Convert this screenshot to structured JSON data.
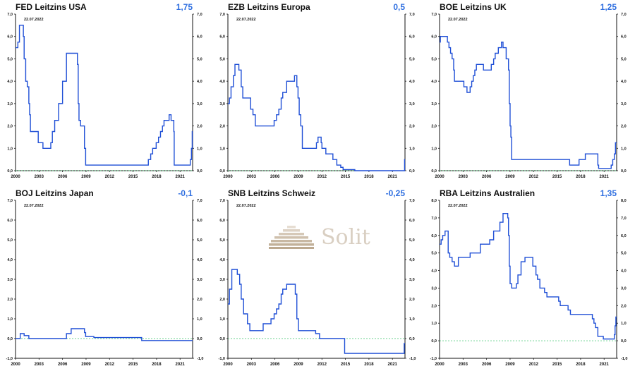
{
  "logo": {
    "text": "Solit"
  },
  "chart_data": [
    {
      "type": "line",
      "title": "FED Leitzins USA",
      "current_value": "1,75",
      "date_label": "22.07.2022",
      "ylim": [
        0,
        7
      ],
      "yticks": [
        "0,0",
        "1,0",
        "2,0",
        "3,0",
        "4,0",
        "5,0",
        "6,0",
        "7,0"
      ],
      "xlim": [
        2000,
        2022.6
      ],
      "xticks": [
        "2000",
        "2003",
        "2006",
        "2009",
        "2012",
        "2015",
        "2018",
        "2021"
      ],
      "zero_line": true,
      "line_color": "#1f4fd6",
      "series": [
        {
          "x": [
            2000,
            2000.3,
            2000.5,
            2000.9,
            2001.0,
            2001.1,
            2001.3,
            2001.5,
            2001.7,
            2001.8,
            2001.9,
            2002.9,
            2003.5,
            2004.5,
            2004.7,
            2005.0,
            2005.5,
            2006.0,
            2006.5,
            2007.7,
            2007.9,
            2008.0,
            2008.1,
            2008.3,
            2008.8,
            2008.95,
            2015.95,
            2016.95,
            2017.25,
            2017.5,
            2017.95,
            2018.25,
            2018.5,
            2018.75,
            2018.95,
            2019.6,
            2019.7,
            2019.85,
            2020.2,
            2020.25,
            2022.2,
            2022.3,
            2022.45,
            2022.55
          ],
          "y": [
            5.5,
            5.75,
            6.5,
            6.5,
            6.0,
            5.0,
            4.0,
            3.75,
            3.0,
            2.5,
            1.75,
            1.25,
            1.0,
            1.25,
            1.75,
            2.25,
            3.0,
            4.0,
            5.25,
            5.25,
            4.75,
            3.0,
            2.25,
            2.0,
            1.0,
            0.25,
            0.25,
            0.5,
            0.75,
            1.0,
            1.25,
            1.5,
            1.75,
            2.0,
            2.25,
            2.5,
            2.5,
            2.25,
            1.75,
            0.25,
            0.25,
            0.5,
            1.0,
            1.75
          ]
        }
      ]
    },
    {
      "type": "line",
      "title": "EZB Leitzins Europa",
      "current_value": "0,5",
      "date_label": "22.07.2022",
      "ylim": [
        0,
        7
      ],
      "yticks": [
        "0,0",
        "1,0",
        "2,0",
        "3,0",
        "4,0",
        "5,0",
        "6,0",
        "7,0"
      ],
      "xlim": [
        2000,
        2022.6
      ],
      "xticks": [
        "2000",
        "2003",
        "2006",
        "2009",
        "2012",
        "2015",
        "2018",
        "2021"
      ],
      "zero_line": true,
      "line_color": "#1f4fd6",
      "series": [
        {
          "x": [
            2000,
            2000.2,
            2000.4,
            2000.7,
            2000.9,
            2001.4,
            2001.7,
            2001.9,
            2002.9,
            2003.2,
            2003.5,
            2005.9,
            2006.2,
            2006.5,
            2006.8,
            2007.0,
            2007.5,
            2008.5,
            2008.8,
            2008.95,
            2009.1,
            2009.3,
            2009.5,
            2011.3,
            2011.5,
            2011.9,
            2012.0,
            2012.5,
            2013.4,
            2013.9,
            2014.4,
            2014.7,
            2016.2,
            2022.5,
            2022.55
          ],
          "y": [
            3.0,
            3.25,
            3.75,
            4.25,
            4.75,
            4.5,
            3.75,
            3.25,
            2.75,
            2.5,
            2.0,
            2.25,
            2.5,
            2.75,
            3.25,
            3.5,
            4.0,
            4.25,
            3.75,
            3.25,
            2.5,
            2.0,
            1.0,
            1.25,
            1.5,
            1.25,
            1.0,
            0.75,
            0.5,
            0.25,
            0.15,
            0.05,
            0.0,
            0.0,
            0.5
          ]
        }
      ]
    },
    {
      "type": "line",
      "title": "BOE Leitzins UK",
      "current_value": "1,25",
      "date_label": "22.07.2022",
      "ylim": [
        0,
        7
      ],
      "yticks": [
        "0,0",
        "1,0",
        "2,0",
        "3,0",
        "4,0",
        "5,0",
        "6,0",
        "7,0"
      ],
      "xlim": [
        2000,
        2022.6
      ],
      "xticks": [
        "2000",
        "2003",
        "2006",
        "2009",
        "2012",
        "2015",
        "2018",
        "2021"
      ],
      "zero_line": true,
      "line_color": "#1f4fd6",
      "series": [
        {
          "x": [
            2000,
            2000.1,
            2000.2,
            2001.0,
            2001.2,
            2001.4,
            2001.6,
            2001.8,
            2001.9,
            2003.1,
            2003.5,
            2003.9,
            2004.1,
            2004.3,
            2004.5,
            2004.7,
            2005.6,
            2006.6,
            2006.9,
            2007.1,
            2007.5,
            2007.9,
            2008.1,
            2008.5,
            2008.8,
            2008.9,
            2009.0,
            2009.1,
            2009.2,
            2016.6,
            2017.8,
            2018.6,
            2020.2,
            2020.3,
            2021.9,
            2022.1,
            2022.3,
            2022.45
          ],
          "y": [
            5.75,
            6.0,
            6.0,
            5.75,
            5.5,
            5.25,
            5.0,
            4.5,
            4.0,
            3.75,
            3.5,
            3.75,
            4.0,
            4.25,
            4.5,
            4.75,
            4.5,
            4.75,
            5.0,
            5.25,
            5.5,
            5.75,
            5.5,
            5.0,
            4.5,
            3.0,
            2.0,
            1.5,
            0.5,
            0.25,
            0.5,
            0.75,
            0.25,
            0.1,
            0.25,
            0.5,
            0.75,
            1.25
          ]
        }
      ]
    },
    {
      "type": "line",
      "title": "BOJ Leitzins Japan",
      "current_value": "-0,1",
      "date_label": "22.07.2022",
      "ylim": [
        -1,
        7
      ],
      "yticks": [
        "-1,0",
        "0,0",
        "1,0",
        "2,0",
        "3,0",
        "4,0",
        "5,0",
        "6,0",
        "7,0"
      ],
      "xlim": [
        2000,
        2022.6
      ],
      "xticks": [
        "2000",
        "2003",
        "2006",
        "2009",
        "2012",
        "2015",
        "2018",
        "2021"
      ],
      "zero_line": true,
      "line_color": "#1f4fd6",
      "series": [
        {
          "x": [
            2000,
            2000.6,
            2001.1,
            2001.7,
            2006.5,
            2007.1,
            2008.8,
            2008.95,
            2010.0,
            2016.1,
            2022.55
          ],
          "y": [
            0.0,
            0.25,
            0.15,
            0.0,
            0.25,
            0.5,
            0.3,
            0.1,
            0.05,
            -0.1,
            -0.1
          ]
        }
      ]
    },
    {
      "type": "line",
      "title": "SNB Leitzins Schweiz",
      "current_value": "-0,25",
      "date_label": "22.07.2022",
      "ylim": [
        -1,
        7
      ],
      "yticks": [
        "-1,0",
        "0,0",
        "1,0",
        "2,0",
        "3,0",
        "4,0",
        "5,0",
        "6,0",
        "7,0"
      ],
      "xlim": [
        2000,
        2022.6
      ],
      "xticks": [
        "2000",
        "2003",
        "2006",
        "2009",
        "2012",
        "2015",
        "2018",
        "2021"
      ],
      "zero_line": true,
      "line_color": "#1f4fd6",
      "series": [
        {
          "x": [
            2000,
            2000.2,
            2000.5,
            2001.2,
            2001.5,
            2001.7,
            2002.0,
            2002.5,
            2002.8,
            2003.4,
            2004.5,
            2004.8,
            2005.5,
            2005.9,
            2006.2,
            2006.5,
            2006.8,
            2007.0,
            2007.5,
            2008.6,
            2008.8,
            2009.0,
            2011.2,
            2011.7,
            2014.9,
            2022.45,
            2022.5
          ],
          "y": [
            1.75,
            2.5,
            3.5,
            3.25,
            2.75,
            2.0,
            1.25,
            0.75,
            0.4,
            0.4,
            0.75,
            0.75,
            1.0,
            1.25,
            1.5,
            1.75,
            2.25,
            2.5,
            2.75,
            2.25,
            1.0,
            0.4,
            0.25,
            0.0,
            -0.75,
            -0.75,
            -0.25
          ]
        }
      ]
    },
    {
      "type": "line",
      "title": "RBA Leitzins Australien",
      "current_value": "1,35",
      "date_label": "22.07.2022",
      "ylim": [
        -1,
        8
      ],
      "yticks": [
        "-1,0",
        "0,0",
        "1,0",
        "2,0",
        "3,0",
        "4,0",
        "5,0",
        "6,0",
        "7,0",
        "8,0"
      ],
      "xlim": [
        2000,
        2022.6
      ],
      "xticks": [
        "2000",
        "2003",
        "2006",
        "2009",
        "2012",
        "2015",
        "2018",
        "2021"
      ],
      "zero_line": true,
      "line_color": "#1f4fd6",
      "series": [
        {
          "x": [
            2000,
            2000.2,
            2000.4,
            2000.7,
            2001.1,
            2001.3,
            2001.6,
            2001.9,
            2002.4,
            2003.9,
            2005.2,
            2006.4,
            2006.9,
            2007.7,
            2008.1,
            2008.7,
            2008.8,
            2008.9,
            2009.0,
            2009.2,
            2009.8,
            2010.0,
            2010.4,
            2010.9,
            2011.9,
            2012.3,
            2012.5,
            2012.8,
            2013.4,
            2013.7,
            2015.2,
            2015.4,
            2016.4,
            2016.7,
            2019.5,
            2019.7,
            2019.9,
            2020.2,
            2020.9,
            2022.3,
            2022.4,
            2022.5
          ],
          "y": [
            5.5,
            5.75,
            6.0,
            6.25,
            5.0,
            4.75,
            4.5,
            4.25,
            4.75,
            5.0,
            5.5,
            5.75,
            6.25,
            6.75,
            7.25,
            7.0,
            6.0,
            4.25,
            3.25,
            3.0,
            3.25,
            3.75,
            4.5,
            4.75,
            4.25,
            3.75,
            3.5,
            3.0,
            2.75,
            2.5,
            2.25,
            2.0,
            1.75,
            1.5,
            1.25,
            1.0,
            0.75,
            0.25,
            0.1,
            0.35,
            0.85,
            1.35
          ]
        }
      ]
    }
  ]
}
